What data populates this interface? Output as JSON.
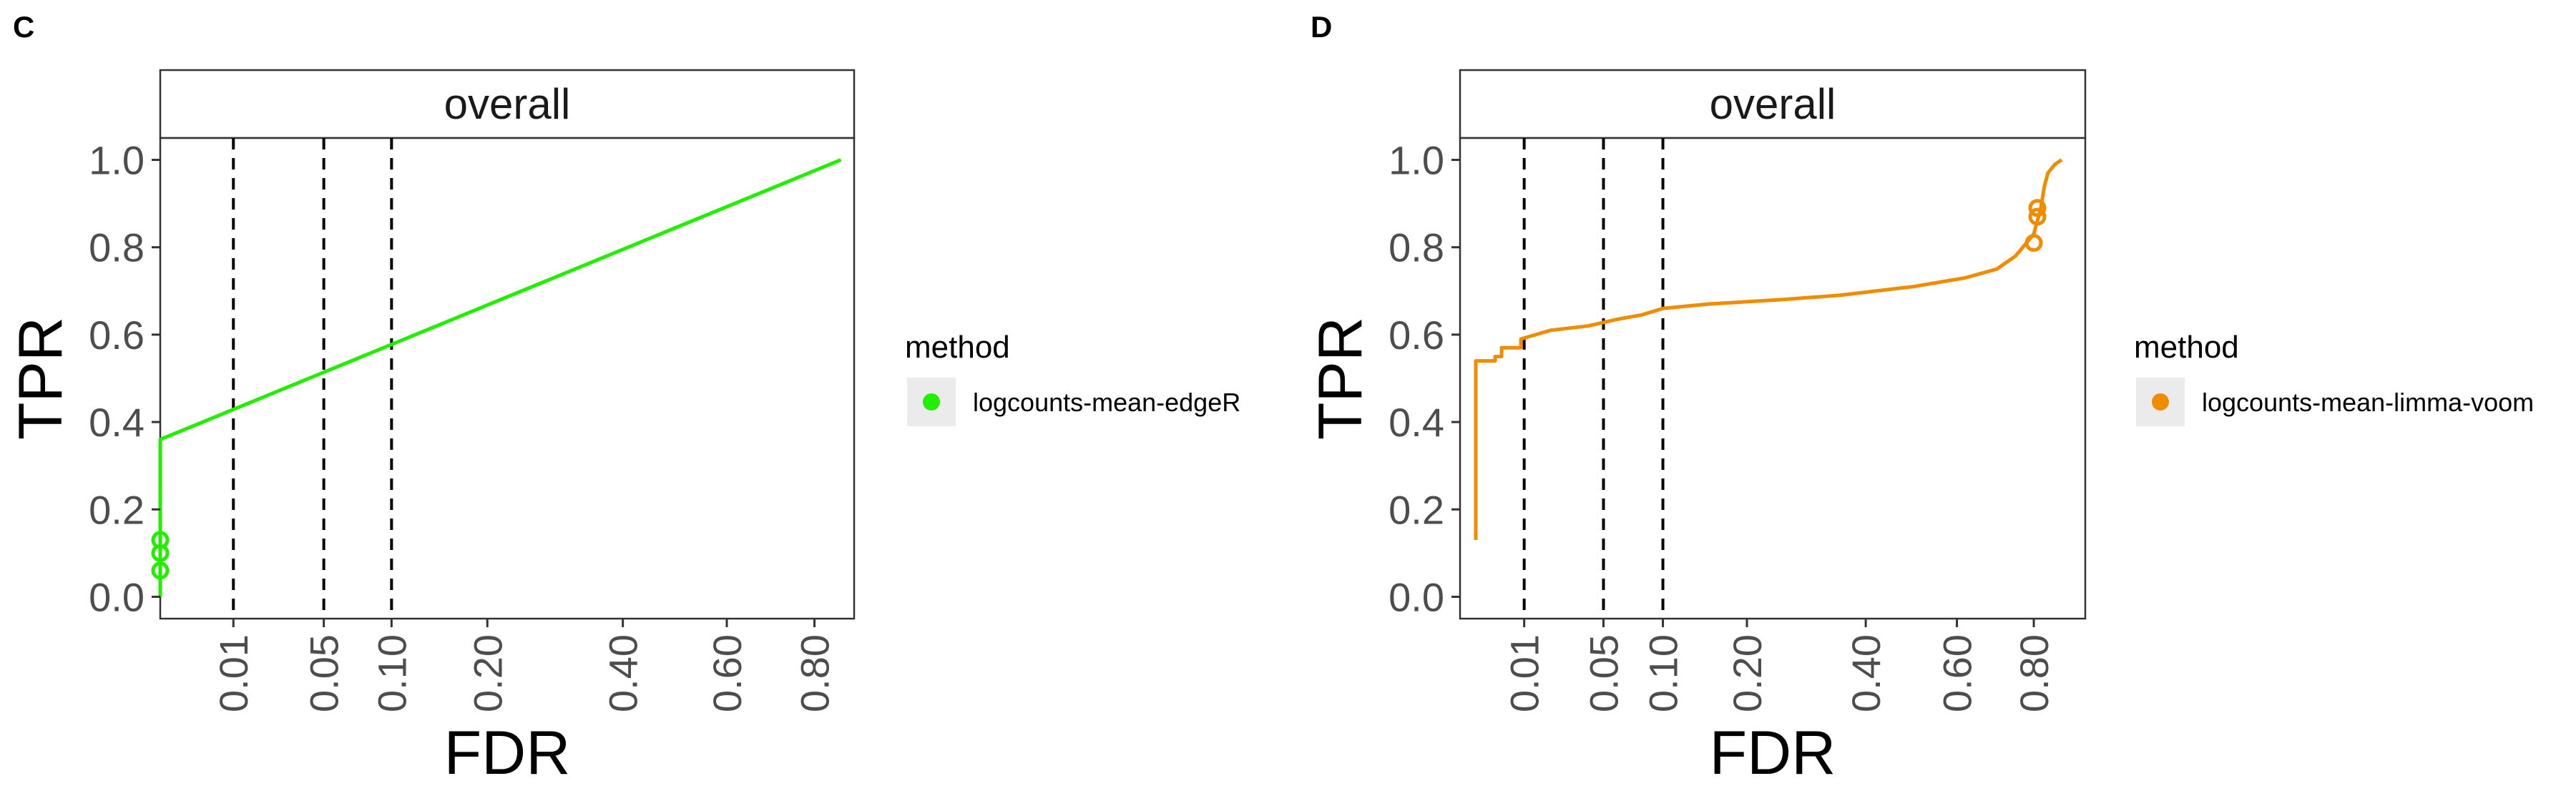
{
  "chart_data": [
    {
      "panel": "C",
      "type": "line",
      "facet_label": "overall",
      "xlabel": "FDR",
      "ylabel": "TPR",
      "x_scale": "sqrt",
      "xlim": [
        0,
        0.9
      ],
      "ylim": [
        -0.05,
        1.05
      ],
      "x_ticks": [
        {
          "value": 0.01,
          "label": "0.01"
        },
        {
          "value": 0.05,
          "label": "0.05"
        },
        {
          "value": 0.1,
          "label": "0.10"
        },
        {
          "value": 0.2,
          "label": "0.20"
        },
        {
          "value": 0.4,
          "label": "0.40"
        },
        {
          "value": 0.6,
          "label": "0.60"
        },
        {
          "value": 0.8,
          "label": "0.80"
        }
      ],
      "y_ticks": [
        {
          "value": 0.0,
          "label": "0.0"
        },
        {
          "value": 0.2,
          "label": "0.2"
        },
        {
          "value": 0.4,
          "label": "0.4"
        },
        {
          "value": 0.6,
          "label": "0.6"
        },
        {
          "value": 0.8,
          "label": "0.8"
        },
        {
          "value": 1.0,
          "label": "1.0"
        }
      ],
      "vlines": [
        0.01,
        0.05,
        0.1
      ],
      "legend": {
        "title": "method",
        "placement": "right"
      },
      "series": [
        {
          "name": "logcounts-mean-edgeR",
          "color": "#22ee00",
          "x": [
            0.0,
            0.0,
            0.0,
            0.866
          ],
          "y": [
            0.0,
            0.13,
            0.36,
            1.0
          ],
          "points": [
            {
              "x": 0.0,
              "y": 0.06
            },
            {
              "x": 0.0,
              "y": 0.1
            },
            {
              "x": 0.0,
              "y": 0.13
            }
          ]
        }
      ]
    },
    {
      "panel": "D",
      "type": "line",
      "facet_label": "overall",
      "xlabel": "FDR",
      "ylabel": "TPR",
      "x_scale": "sqrt",
      "xlim": [
        0,
        0.95
      ],
      "ylim": [
        -0.05,
        1.05
      ],
      "x_ticks": [
        {
          "value": 0.01,
          "label": "0.01"
        },
        {
          "value": 0.05,
          "label": "0.05"
        },
        {
          "value": 0.1,
          "label": "0.10"
        },
        {
          "value": 0.2,
          "label": "0.20"
        },
        {
          "value": 0.4,
          "label": "0.40"
        },
        {
          "value": 0.6,
          "label": "0.60"
        },
        {
          "value": 0.8,
          "label": "0.80"
        }
      ],
      "y_ticks": [
        {
          "value": 0.0,
          "label": "0.0"
        },
        {
          "value": 0.2,
          "label": "0.2"
        },
        {
          "value": 0.4,
          "label": "0.4"
        },
        {
          "value": 0.6,
          "label": "0.6"
        },
        {
          "value": 0.8,
          "label": "0.8"
        },
        {
          "value": 1.0,
          "label": "1.0"
        }
      ],
      "vlines": [
        0.01,
        0.05,
        0.1
      ],
      "legend": {
        "title": "method",
        "placement": "right"
      },
      "series": [
        {
          "name": "logcounts-mean-limma-voom",
          "color": "#f08c00",
          "x": [
            0.0006,
            0.0006,
            0.003,
            0.003,
            0.0042,
            0.0042,
            0.009,
            0.009,
            0.02,
            0.04,
            0.06,
            0.08,
            0.1,
            0.15,
            0.25,
            0.35,
            0.5,
            0.62,
            0.7,
            0.75,
            0.8,
            0.82,
            0.83,
            0.84,
            0.86,
            0.88
          ],
          "y": [
            0.13,
            0.54,
            0.54,
            0.55,
            0.55,
            0.57,
            0.57,
            0.59,
            0.61,
            0.62,
            0.635,
            0.645,
            0.66,
            0.67,
            0.68,
            0.69,
            0.71,
            0.73,
            0.75,
            0.78,
            0.83,
            0.89,
            0.94,
            0.97,
            0.99,
            1.0
          ],
          "points": [
            {
              "x": 0.8,
              "y": 0.81
            },
            {
              "x": 0.81,
              "y": 0.87
            },
            {
              "x": 0.81,
              "y": 0.89
            }
          ]
        }
      ]
    }
  ]
}
